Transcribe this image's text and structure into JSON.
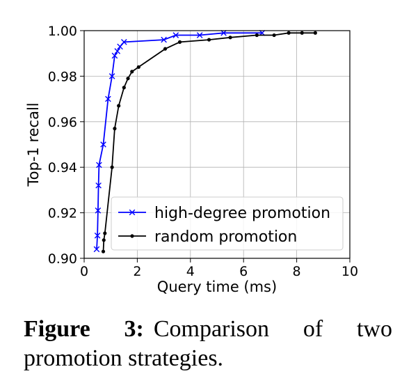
{
  "chart_data": {
    "type": "line",
    "xlabel": "Query time (ms)",
    "ylabel": "Top-1 recall",
    "xlim": [
      0,
      10
    ],
    "ylim": [
      0.9,
      1.0
    ],
    "xticks": [
      0,
      2,
      4,
      6,
      8,
      10
    ],
    "xtick_labels": [
      "0",
      "2",
      "4",
      "6",
      "8",
      "10"
    ],
    "yticks": [
      0.9,
      0.92,
      0.94,
      0.96,
      0.98,
      1.0
    ],
    "ytick_labels": [
      "0.90",
      "0.92",
      "0.94",
      "0.96",
      "0.98",
      "1.00"
    ],
    "grid": true,
    "legend_position": "lower-right",
    "series": [
      {
        "name": "high-degree promotion",
        "color": "#0000ff",
        "marker": "x",
        "x": [
          0.47,
          0.5,
          0.52,
          0.54,
          0.56,
          0.72,
          0.9,
          1.05,
          1.15,
          1.25,
          1.35,
          1.5,
          3.0,
          3.45,
          4.35,
          5.25,
          6.7
        ],
        "y": [
          0.904,
          0.91,
          0.921,
          0.932,
          0.941,
          0.95,
          0.97,
          0.98,
          0.989,
          0.991,
          0.993,
          0.995,
          0.996,
          0.998,
          0.998,
          0.999,
          0.999
        ]
      },
      {
        "name": "random promotion",
        "color": "#000000",
        "marker": "dot",
        "x": [
          0.72,
          0.74,
          0.78,
          1.05,
          1.15,
          1.3,
          1.5,
          1.65,
          1.8,
          2.05,
          3.05,
          3.6,
          4.7,
          5.5,
          6.5,
          7.15,
          7.7,
          8.2,
          8.7
        ],
        "y": [
          0.903,
          0.908,
          0.911,
          0.94,
          0.957,
          0.967,
          0.975,
          0.979,
          0.982,
          0.984,
          0.992,
          0.995,
          0.996,
          0.997,
          0.998,
          0.998,
          0.999,
          0.999,
          0.999
        ]
      }
    ]
  },
  "caption": {
    "label": "Figure 3:",
    "text": "Comparison of two promotion strategies."
  }
}
